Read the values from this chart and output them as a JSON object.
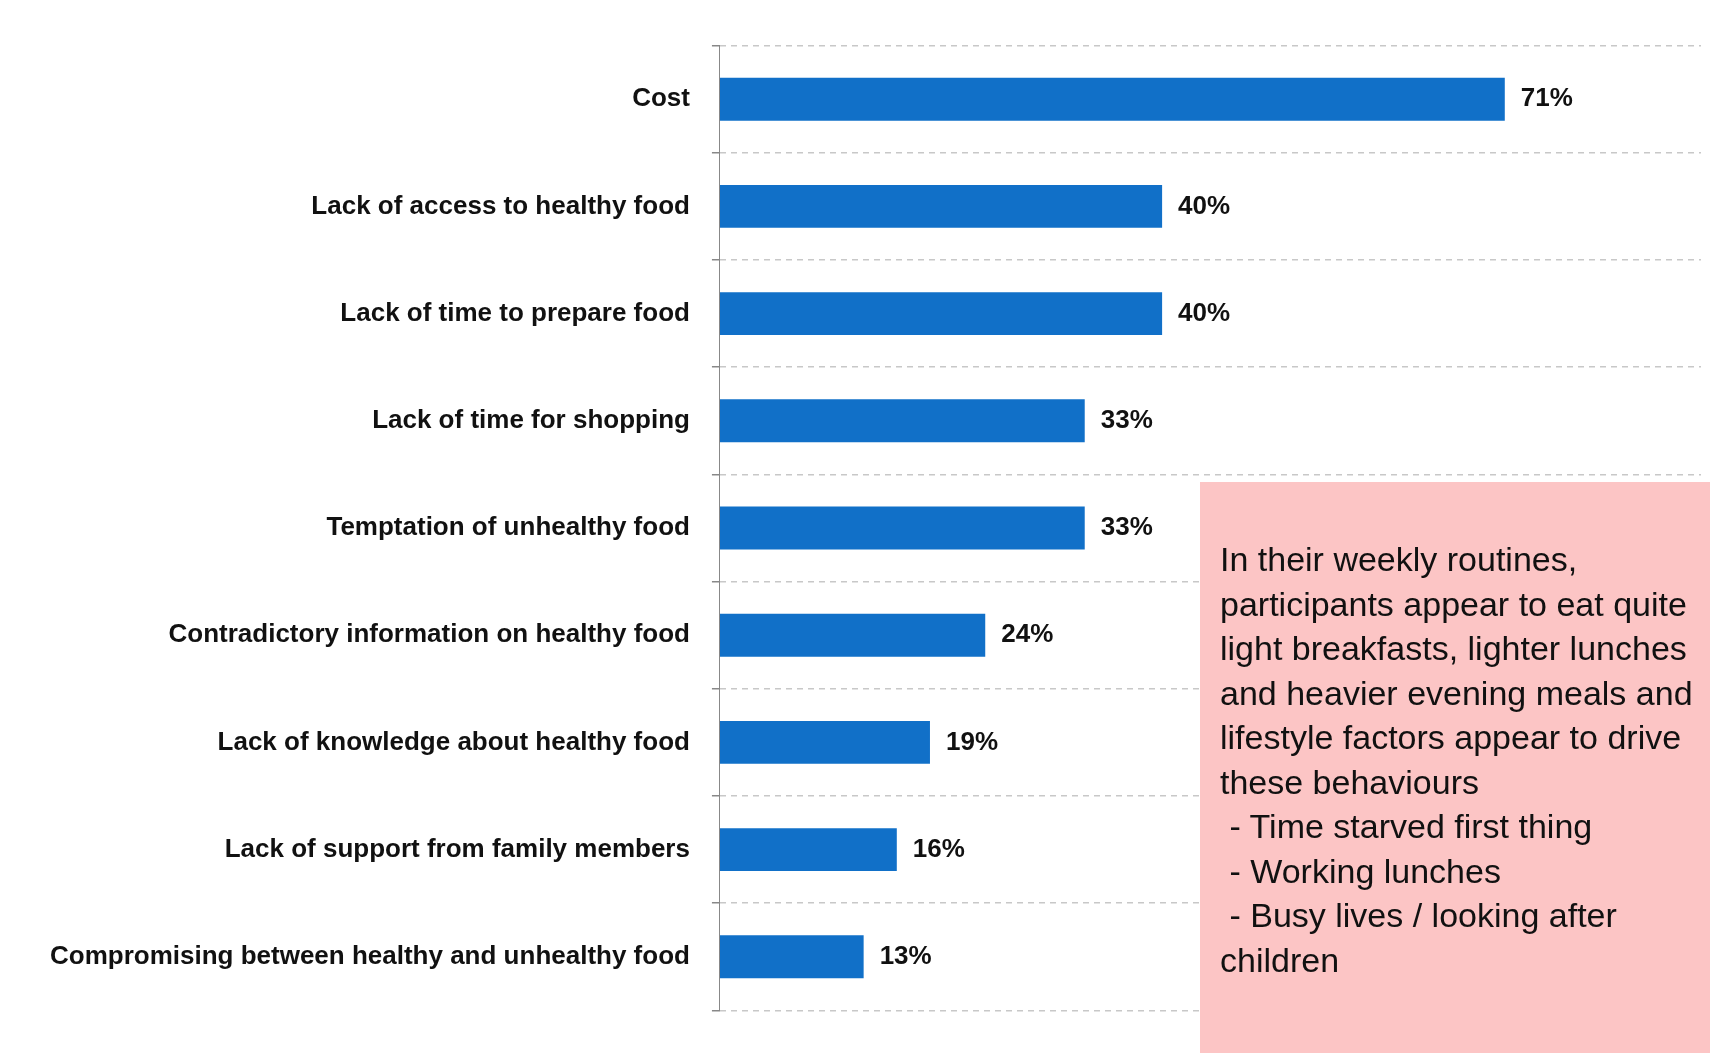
{
  "chart_data": {
    "type": "bar",
    "orientation": "horizontal",
    "categories": [
      "Cost",
      "Lack of access to healthy food",
      "Lack of time to prepare food",
      "Lack of time for shopping",
      "Temptation of unhealthy food",
      "Contradictory information on healthy food",
      "Lack of knowledge about healthy food",
      "Lack of support from family members",
      "Compromising between healthy and unhealthy food"
    ],
    "values": [
      71,
      40,
      40,
      33,
      33,
      24,
      19,
      16,
      13
    ],
    "value_labels": [
      "71%",
      "40%",
      "40%",
      "33%",
      "33%",
      "24%",
      "19%",
      "16%",
      "13%"
    ],
    "color": "#1170c8",
    "grid": "y",
    "annotations": [
      "In their weekly routines, participants appear to eat quite light breakfasts, lighter lunches and heavier evening meals and lifestyle factors appear to drive these behaviours\n - Time starved first thing\n - Working lunches\n - Busy lives / looking after children"
    ]
  }
}
